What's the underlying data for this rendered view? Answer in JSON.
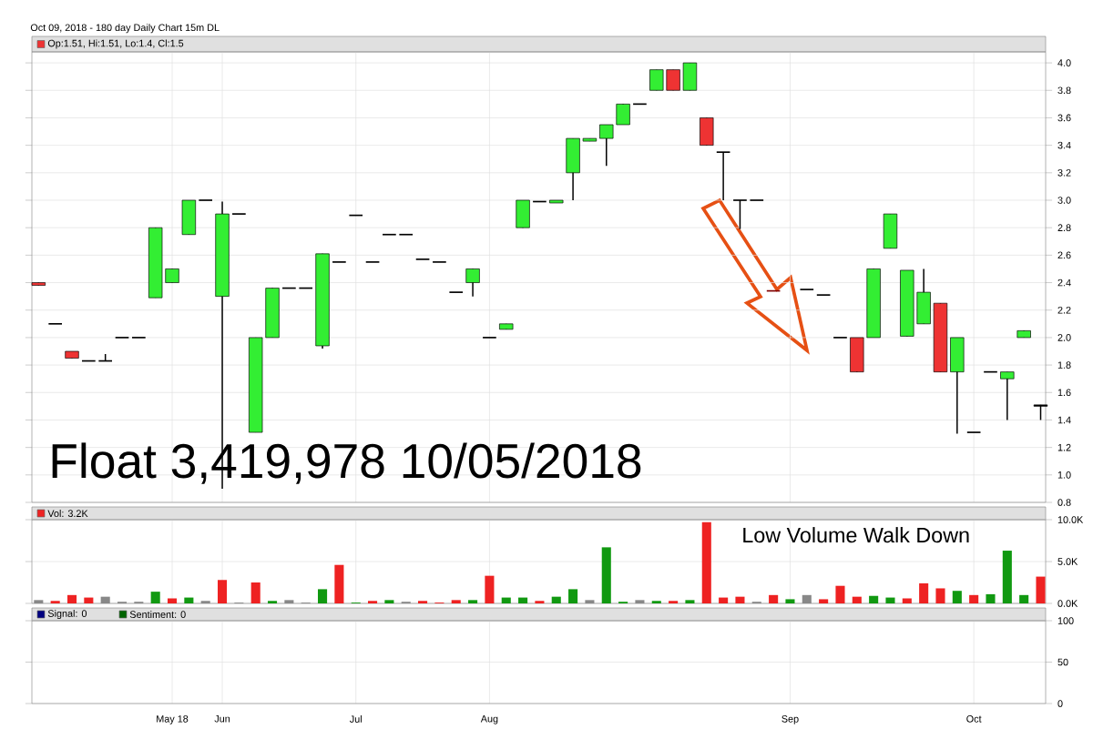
{
  "chart_data": [
    {
      "type": "candlestick",
      "subtitle": "Oct 09, 2018 - 180 day  Daily Chart 15m DL",
      "annotations": [
        "Float 3,419,978 10/05/2018"
      ],
      "categories": [
        null,
        null,
        null,
        null,
        null,
        null,
        null,
        null,
        null,
        null,
        null,
        null,
        null,
        null,
        null,
        null,
        null,
        null,
        null,
        null,
        null,
        null,
        null,
        null,
        null,
        null,
        null,
        null,
        null,
        null,
        null,
        null,
        null,
        null,
        null,
        null,
        null,
        null,
        null,
        null,
        null,
        null,
        null,
        null,
        null,
        null,
        null,
        null,
        null,
        null,
        null,
        null,
        null,
        null,
        null,
        null,
        null,
        null,
        null,
        null,
        null
      ],
      "series": [
        {
          "name": "Op:1.51, Hi:1.51, Lo:1.4, Cl:1.5",
          "color": "#ee3333",
          "ohlc": [
            [
              2.4,
              2.4,
              2.38,
              2.38
            ],
            [
              2.1,
              2.1,
              2.1,
              2.1
            ],
            [
              1.9,
              1.9,
              1.85,
              1.85
            ],
            [
              1.83,
              1.83,
              1.83,
              1.83
            ],
            [
              1.83,
              1.88,
              1.83,
              1.83
            ],
            [
              2.0,
              2.0,
              2.0,
              2.0
            ],
            [
              2.0,
              2.0,
              2.0,
              2.0
            ],
            [
              2.29,
              2.8,
              2.29,
              2.8
            ],
            [
              2.4,
              2.5,
              2.4,
              2.5
            ],
            [
              2.75,
              3.0,
              2.75,
              3.0
            ],
            [
              3.0,
              3.0,
              3.0,
              3.0
            ],
            [
              2.3,
              2.99,
              0.9,
              2.9
            ],
            [
              2.9,
              2.9,
              2.9,
              2.9
            ],
            [
              1.31,
              2.0,
              1.31,
              2.0
            ],
            [
              2.0,
              2.36,
              2.0,
              2.36
            ],
            [
              2.36,
              2.36,
              2.36,
              2.36
            ],
            [
              2.36,
              2.36,
              2.36,
              2.36
            ],
            [
              1.94,
              2.61,
              1.92,
              2.61
            ],
            [
              2.55,
              2.55,
              2.55,
              2.55
            ],
            [
              2.89,
              2.89,
              2.89,
              2.89
            ],
            [
              2.55,
              2.55,
              2.55,
              2.55
            ],
            [
              2.75,
              2.75,
              2.75,
              2.75
            ],
            [
              2.75,
              2.75,
              2.75,
              2.75
            ],
            [
              2.57,
              2.57,
              2.57,
              2.57
            ],
            [
              2.55,
              2.55,
              2.55,
              2.55
            ],
            [
              2.33,
              2.33,
              2.33,
              2.33
            ],
            [
              2.4,
              2.5,
              2.3,
              2.5
            ],
            [
              2.0,
              2.0,
              2.0,
              2.0
            ],
            [
              2.06,
              2.1,
              2.06,
              2.1
            ],
            [
              2.8,
              3.0,
              2.8,
              3.0
            ],
            [
              2.99,
              2.99,
              2.99,
              2.99
            ],
            [
              2.98,
              3.0,
              2.98,
              3.0
            ],
            [
              3.2,
              3.45,
              3.0,
              3.45
            ],
            [
              3.43,
              3.45,
              3.43,
              3.45
            ],
            [
              3.45,
              3.55,
              3.25,
              3.55
            ],
            [
              3.55,
              3.7,
              3.55,
              3.7
            ],
            [
              3.7,
              3.7,
              3.7,
              3.7
            ],
            [
              3.8,
              3.95,
              3.8,
              3.95
            ],
            [
              3.95,
              3.95,
              3.8,
              3.8
            ],
            [
              3.8,
              4.0,
              3.8,
              4.0
            ],
            [
              3.6,
              3.6,
              3.4,
              3.4
            ],
            [
              3.35,
              3.35,
              3.0,
              3.35
            ],
            [
              3.0,
              3.0,
              2.79,
              3.0
            ],
            [
              3.0,
              3.0,
              3.0,
              3.0
            ],
            [
              2.34,
              2.34,
              2.34,
              2.34
            ],
            null,
            [
              2.35,
              2.35,
              2.35,
              2.35
            ],
            [
              2.31,
              2.31,
              2.31,
              2.31
            ],
            [
              2.0,
              2.0,
              2.0,
              2.0
            ],
            [
              2.0,
              2.0,
              1.75,
              1.75
            ],
            [
              2.0,
              2.5,
              2.0,
              2.5
            ],
            [
              2.65,
              2.9,
              2.65,
              2.9
            ],
            [
              2.01,
              2.49,
              2.01,
              2.49
            ],
            [
              2.1,
              2.5,
              2.1,
              2.33
            ],
            [
              2.25,
              2.25,
              1.75,
              1.75
            ],
            [
              1.75,
              2.0,
              1.3,
              2.0
            ],
            [
              1.31,
              1.31,
              1.31,
              1.31
            ],
            [
              1.75,
              1.75,
              1.75,
              1.75
            ],
            [
              1.7,
              1.75,
              1.4,
              1.75
            ],
            [
              2.0,
              2.05,
              2.0,
              2.05
            ],
            [
              1.51,
              1.51,
              1.4,
              1.5
            ]
          ],
          "colors": [
            "#ee3333",
            "#000000",
            "#ee3333",
            "#000000",
            "#000000",
            "#000000",
            "#000000",
            "#33ee33",
            "#33ee33",
            "#33ee33",
            "#000000",
            "#33ee33",
            "#000000",
            "#33ee33",
            "#33ee33",
            "#000000",
            "#000000",
            "#33ee33",
            "#000000",
            "#000000",
            "#000000",
            "#000000",
            "#000000",
            "#000000",
            "#000000",
            "#000000",
            "#33ee33",
            "#000000",
            "#33ee33",
            "#33ee33",
            "#000000",
            "#33ee33",
            "#33ee33",
            "#33ee33",
            "#33ee33",
            "#33ee33",
            "#000000",
            "#33ee33",
            "#ee3333",
            "#33ee33",
            "#ee3333",
            "#000000",
            "#000000",
            "#000000",
            "#800000",
            null,
            "#000000",
            "#000000",
            "#000000",
            "#ee3333",
            "#33ee33",
            "#33ee33",
            "#33ee33",
            "#33ee33",
            "#ee3333",
            "#33ee33",
            "#000000",
            "#000000",
            "#33ee33",
            "#33ee33",
            "#000000"
          ]
        }
      ],
      "ylim": [
        0.8,
        4.08
      ],
      "yticks": [
        0.8,
        {
          "value": 1.0,
          "label": "1.0"
        },
        1.2,
        1.4,
        1.6,
        1.8,
        {
          "value": 2.0,
          "label": "2.0"
        },
        2.2,
        2.4,
        2.6,
        2.8,
        {
          "value": 3.0,
          "label": "3.0"
        },
        3.2,
        3.4,
        3.6,
        3.8,
        {
          "value": 4.0,
          "label": "4.0"
        }
      ],
      "grid": true,
      "legend": "top left",
      "tick_labels": "y"
    },
    {
      "type": "bar",
      "annotations": [
        "Low Volume Walk Down"
      ],
      "categories": [
        null,
        null,
        null,
        null,
        null,
        null,
        null,
        null,
        null,
        null,
        null,
        null,
        null,
        null,
        null,
        null,
        null,
        null,
        null,
        null,
        null,
        null,
        null,
        null,
        null,
        null,
        null,
        null,
        null,
        null,
        null,
        null,
        null,
        null,
        null,
        null,
        null,
        null,
        null,
        null,
        null,
        null,
        null,
        null,
        null,
        null,
        null,
        null,
        null,
        null,
        null,
        null,
        null,
        null,
        null,
        null,
        null,
        null,
        null,
        null,
        null
      ],
      "series": [
        {
          "name": "Vol: 3.2K",
          "color": "#ee2222",
          "values": [
            0.4,
            0.3,
            1.0,
            0.7,
            0.8,
            0.2,
            0.2,
            1.4,
            0.6,
            0.7,
            0.3,
            2.8,
            0.1,
            2.5,
            0.3,
            0.4,
            0.1,
            1.7,
            4.6,
            0.1,
            0.3,
            0.4,
            0.2,
            0.3,
            0.1,
            0.4,
            0.4,
            3.3,
            0.7,
            0.7,
            0.3,
            0.8,
            1.7,
            0.4,
            6.7,
            0.2,
            0.4,
            0.3,
            0.3,
            0.4,
            9.7,
            0.7,
            0.8,
            0.2,
            1.0,
            0.5,
            1.0,
            0.5,
            2.1,
            0.8,
            0.9,
            0.7,
            0.6,
            2.4,
            1.8,
            1.5,
            1.0,
            1.1,
            6.3,
            1.0,
            3.2
          ],
          "colors": [
            "#888888",
            "#ee2222",
            "#ee2222",
            "#ee2222",
            "#888888",
            "#888888",
            "#888888",
            "#119911",
            "#ee2222",
            "#119911",
            "#888888",
            "#ee2222",
            "#888888",
            "#ee2222",
            "#119911",
            "#888888",
            "#888888",
            "#119911",
            "#ee2222",
            "#119911",
            "#ee2222",
            "#119911",
            "#888888",
            "#ee2222",
            "#ee2222",
            "#ee2222",
            "#119911",
            "#ee2222",
            "#119911",
            "#119911",
            "#ee2222",
            "#119911",
            "#119911",
            "#888888",
            "#119911",
            "#119911",
            "#888888",
            "#119911",
            "#ee2222",
            "#119911",
            "#ee2222",
            "#ee2222",
            "#ee2222",
            "#888888",
            "#ee2222",
            "#119911",
            "#888888",
            "#ee2222",
            "#ee2222",
            "#ee2222",
            "#119911",
            "#119911",
            "#ee2222",
            "#ee2222",
            "#ee2222",
            "#119911",
            "#ee2222",
            "#119911",
            "#119911",
            "#119911",
            "#ee2222"
          ]
        }
      ],
      "ylim": [
        0,
        10
      ],
      "yticks": [
        {
          "value": 0,
          "label": "0.0K"
        },
        {
          "value": 5,
          "label": "5.0K"
        },
        {
          "value": 10,
          "label": "10.0K"
        }
      ],
      "grid": true,
      "legend": "top left",
      "tick_labels": "y"
    },
    {
      "type": "line",
      "categories": [
        null,
        null,
        null,
        null,
        null,
        null,
        null,
        null,
        "May 18",
        null,
        null,
        "Jun",
        null,
        null,
        null,
        null,
        null,
        null,
        null,
        "Jul",
        null,
        null,
        null,
        null,
        null,
        null,
        null,
        "Aug",
        null,
        null,
        null,
        null,
        null,
        null,
        null,
        null,
        null,
        null,
        null,
        null,
        null,
        null,
        null,
        null,
        null,
        "Sep",
        null,
        null,
        null,
        null,
        null,
        null,
        null,
        null,
        null,
        null,
        "Oct",
        null,
        null,
        null,
        null
      ],
      "series": [
        {
          "name": "Signal: 0",
          "color": "#000080",
          "values": [
            null,
            null,
            null,
            null,
            null,
            null,
            null,
            null,
            null,
            null,
            null,
            null,
            null,
            null,
            null,
            null,
            null,
            null,
            null,
            null,
            null,
            null,
            null,
            null,
            null,
            null,
            null,
            null,
            null,
            null,
            null,
            null,
            null,
            null,
            null,
            null,
            null,
            null,
            null,
            null,
            null,
            null,
            null,
            null,
            null,
            null,
            null,
            null,
            null,
            null,
            null,
            null,
            null,
            null,
            null,
            null,
            null,
            null,
            null,
            null,
            null
          ]
        },
        {
          "name": "Sentiment: 0",
          "color": "#006400",
          "values": [
            null,
            null,
            null,
            null,
            null,
            null,
            null,
            null,
            null,
            null,
            null,
            null,
            null,
            null,
            null,
            null,
            null,
            null,
            null,
            null,
            null,
            null,
            null,
            null,
            null,
            null,
            null,
            null,
            null,
            null,
            null,
            null,
            null,
            null,
            null,
            null,
            null,
            null,
            null,
            null,
            null,
            null,
            null,
            null,
            null,
            null,
            null,
            null,
            null,
            null,
            null,
            null,
            null,
            null,
            null,
            null,
            null,
            null,
            null,
            null,
            null
          ]
        }
      ],
      "ylim": [
        0,
        100
      ],
      "yticks": [
        0,
        50,
        100
      ],
      "grid": true,
      "legend": "top left"
    }
  ]
}
